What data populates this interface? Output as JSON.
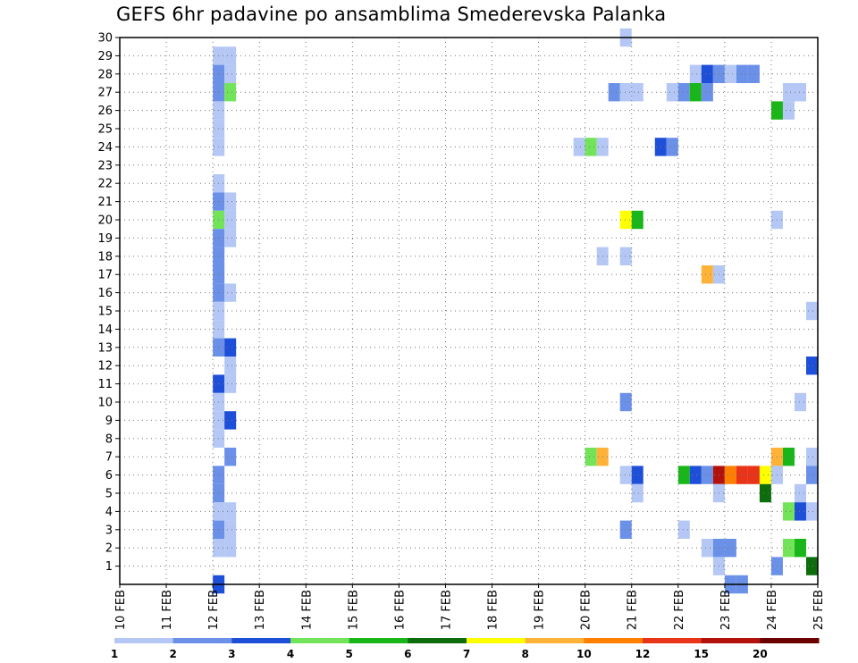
{
  "chart_data": {
    "type": "heatmap",
    "title": "GEFS 6hr padavine po ansamblima Smederevska Palanka",
    "x_labels": [
      "10 FEB",
      "11 FEB",
      "12 FEB",
      "13 FEB",
      "14 FEB",
      "15 FEB",
      "16 FEB",
      "17 FEB",
      "18 FEB",
      "19 FEB",
      "20 FEB",
      "21 FEB",
      "22 FEB",
      "23 FEB",
      "24 FEB",
      "25 FEB"
    ],
    "x_range": [
      10,
      25
    ],
    "y_ticks": [
      1,
      2,
      3,
      4,
      5,
      6,
      7,
      8,
      9,
      10,
      11,
      12,
      13,
      14,
      15,
      16,
      17,
      18,
      19,
      20,
      21,
      22,
      23,
      24,
      25,
      26,
      27,
      28,
      29,
      30
    ],
    "y_range": [
      0,
      30
    ],
    "grid": true,
    "legend": {
      "placement": "bottom",
      "bins": [
        {
          "label": "1",
          "color": "#b4c7f5"
        },
        {
          "label": "2",
          "color": "#6a90e8"
        },
        {
          "label": "3",
          "color": "#1e4fd8"
        },
        {
          "label": "4",
          "color": "#73e45a"
        },
        {
          "label": "5",
          "color": "#19b619"
        },
        {
          "label": "6",
          "color": "#0d6d0d"
        },
        {
          "label": "7",
          "color": "#ffff00"
        },
        {
          "label": "8",
          "color": "#ffb238"
        },
        {
          "label": "10",
          "color": "#ff7f00"
        },
        {
          "label": "12",
          "color": "#e83418"
        },
        {
          "label": "15",
          "color": "#b3120c"
        },
        {
          "label": "20",
          "color": "#6b0000"
        }
      ]
    },
    "cells_note": "each cell: [day_start_of_6h_step, member, category_index 0-11]",
    "cells": [
      [
        12.0,
        29,
        0
      ],
      [
        12.25,
        29,
        0
      ],
      [
        12.0,
        28,
        1
      ],
      [
        12.25,
        28,
        0
      ],
      [
        12.0,
        27,
        1
      ],
      [
        12.25,
        27,
        3
      ],
      [
        12.0,
        26,
        0
      ],
      [
        12.0,
        25,
        0
      ],
      [
        12.0,
        24,
        0
      ],
      [
        12.0,
        22,
        0
      ],
      [
        12.0,
        21,
        1
      ],
      [
        12.25,
        21,
        0
      ],
      [
        12.0,
        20,
        3
      ],
      [
        12.25,
        20,
        0
      ],
      [
        12.0,
        19,
        1
      ],
      [
        12.25,
        19,
        0
      ],
      [
        12.0,
        18,
        1
      ],
      [
        12.0,
        17,
        1
      ],
      [
        12.0,
        16,
        1
      ],
      [
        12.25,
        16,
        0
      ],
      [
        12.0,
        15,
        0
      ],
      [
        12.0,
        14,
        0
      ],
      [
        12.0,
        13,
        1
      ],
      [
        12.25,
        13,
        2
      ],
      [
        12.25,
        12,
        0
      ],
      [
        12.0,
        11,
        2
      ],
      [
        12.25,
        11,
        0
      ],
      [
        12.0,
        10,
        0
      ],
      [
        12.0,
        9,
        0
      ],
      [
        12.25,
        9,
        2
      ],
      [
        12.0,
        8,
        0
      ],
      [
        12.25,
        7,
        1
      ],
      [
        12.0,
        6,
        1
      ],
      [
        12.0,
        5,
        1
      ],
      [
        12.0,
        4,
        0
      ],
      [
        12.25,
        4,
        0
      ],
      [
        12.0,
        3,
        1
      ],
      [
        12.25,
        3,
        0
      ],
      [
        12.0,
        2,
        0
      ],
      [
        12.25,
        2,
        0
      ],
      [
        12.0,
        0,
        2
      ],
      [
        20.75,
        30,
        0
      ],
      [
        22.25,
        28,
        0
      ],
      [
        22.5,
        28,
        2
      ],
      [
        22.75,
        28,
        1
      ],
      [
        23.0,
        28,
        0
      ],
      [
        23.25,
        28,
        1
      ],
      [
        23.5,
        28,
        1
      ],
      [
        20.5,
        27,
        1
      ],
      [
        20.75,
        27,
        0
      ],
      [
        21.0,
        27,
        0
      ],
      [
        21.75,
        27,
        0
      ],
      [
        22.0,
        27,
        1
      ],
      [
        22.25,
        27,
        4
      ],
      [
        22.5,
        27,
        1
      ],
      [
        24.25,
        27,
        0
      ],
      [
        24.5,
        27,
        0
      ],
      [
        24.0,
        26,
        4
      ],
      [
        24.25,
        26,
        0
      ],
      [
        19.75,
        24,
        0
      ],
      [
        20.0,
        24,
        3
      ],
      [
        20.25,
        24,
        0
      ],
      [
        21.5,
        24,
        2
      ],
      [
        21.75,
        24,
        1
      ],
      [
        20.75,
        20,
        6
      ],
      [
        21.0,
        20,
        4
      ],
      [
        24.0,
        20,
        0
      ],
      [
        20.25,
        18,
        0
      ],
      [
        20.75,
        18,
        0
      ],
      [
        22.5,
        17,
        7
      ],
      [
        22.75,
        17,
        0
      ],
      [
        24.75,
        15,
        0
      ],
      [
        24.75,
        12,
        2
      ],
      [
        20.75,
        10,
        1
      ],
      [
        24.5,
        10,
        0
      ],
      [
        20.0,
        7,
        3
      ],
      [
        20.25,
        7,
        7
      ],
      [
        24.0,
        7,
        7
      ],
      [
        24.25,
        7,
        4
      ],
      [
        24.75,
        7,
        0
      ],
      [
        20.75,
        6,
        0
      ],
      [
        21.0,
        6,
        2
      ],
      [
        22.0,
        6,
        4
      ],
      [
        22.25,
        6,
        2
      ],
      [
        22.5,
        6,
        1
      ],
      [
        22.75,
        6,
        10
      ],
      [
        23.0,
        6,
        8
      ],
      [
        23.25,
        6,
        9
      ],
      [
        23.5,
        6,
        9
      ],
      [
        23.75,
        6,
        6
      ],
      [
        24.0,
        6,
        0
      ],
      [
        24.75,
        6,
        1
      ],
      [
        21.0,
        5,
        0
      ],
      [
        22.75,
        5,
        0
      ],
      [
        23.75,
        5,
        5
      ],
      [
        24.5,
        5,
        0
      ],
      [
        24.25,
        4,
        3
      ],
      [
        24.5,
        4,
        2
      ],
      [
        24.75,
        4,
        0
      ],
      [
        20.75,
        3,
        1
      ],
      [
        22.0,
        3,
        0
      ],
      [
        22.5,
        2,
        0
      ],
      [
        22.75,
        2,
        1
      ],
      [
        23.0,
        2,
        1
      ],
      [
        24.25,
        2,
        3
      ],
      [
        24.5,
        2,
        4
      ],
      [
        22.75,
        1,
        0
      ],
      [
        24.0,
        1,
        1
      ],
      [
        24.75,
        1,
        5
      ],
      [
        23.0,
        0,
        1
      ],
      [
        23.25,
        0,
        1
      ]
    ]
  }
}
